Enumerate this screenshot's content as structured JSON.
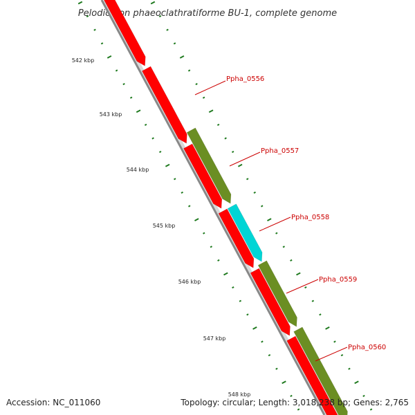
{
  "title": "Pelodictyon phaeoclathratiforme BU-1, complete genome",
  "accession": "Accession: NC_011060",
  "summary": "Topology: circular; Length: 3,018,238 bp; Genes: 2,765",
  "colors": {
    "backbone": "#888888",
    "forward_cds": "#ff0000",
    "reverse_cds": "#6b8e23",
    "rna": "#00d5d5",
    "tick": "#1f7a1f",
    "label": "#cc0000"
  },
  "scale": {
    "ticks": [
      {
        "label": "542 kbp"
      },
      {
        "label": "543 kbp"
      },
      {
        "label": "544 kbp"
      },
      {
        "label": "545 kbp"
      },
      {
        "label": "546 kbp"
      },
      {
        "label": "547 kbp"
      },
      {
        "label": "548 kbp"
      }
    ]
  },
  "genes": [
    {
      "name": "Ppha_0556"
    },
    {
      "name": "Ppha_0557"
    },
    {
      "name": "Ppha_0558"
    },
    {
      "name": "Ppha_0559"
    },
    {
      "name": "Ppha_0560"
    }
  ]
}
